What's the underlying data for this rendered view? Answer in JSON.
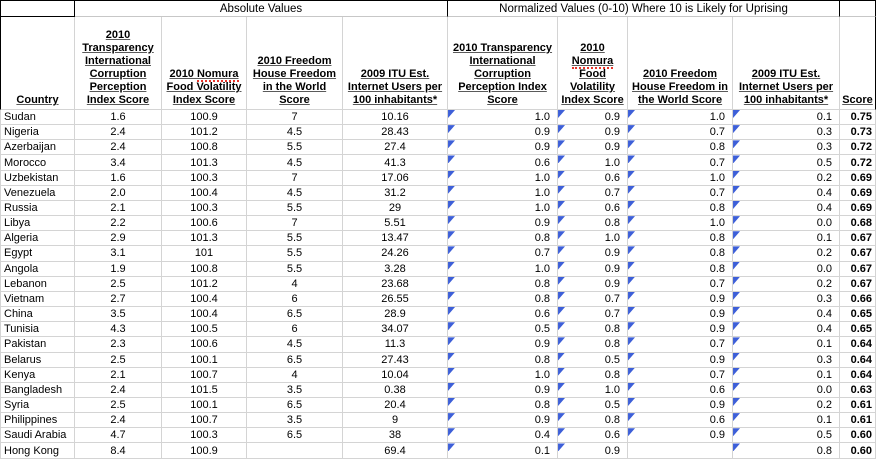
{
  "bands": {
    "absolute_label": "Absolute Values",
    "normalized_label": "Normalized Values (0-10) Where 10 is Likely for Uprising"
  },
  "columns": {
    "country": "Country",
    "abs": [
      "2010 Transparency International Corruption Perception Index Score",
      "2010 Nomura Food Volatility Index Score",
      "2010 Freedom House Freedom in the World Score",
      "2009 ITU Est. Internet Users per 100 inhabitants*"
    ],
    "norm": [
      "2010 Transparency International Corruption Perception Index Score",
      "2010 Nomura Food Volatility Index Score",
      "2010 Freedom House Freedom in the World Score",
      "2009 ITU Est. Internet Users per 100 inhabitants*"
    ],
    "score": "Score"
  },
  "misspelled_word": "Nomura",
  "colors": {
    "formula_marker_blue": "#3d5fd8",
    "gridline": "#d4d4d4",
    "band_border": "#000000"
  },
  "rows": [
    {
      "country": "Sudan",
      "abs": [
        "1.6",
        "100.9",
        "7",
        "10.16"
      ],
      "norm": [
        "1.0",
        "0.9",
        "1.0",
        "0.1"
      ],
      "score": "0.75"
    },
    {
      "country": "Nigeria",
      "abs": [
        "2.4",
        "101.2",
        "4.5",
        "28.43"
      ],
      "norm": [
        "0.9",
        "0.9",
        "0.7",
        "0.3"
      ],
      "score": "0.73"
    },
    {
      "country": "Azerbaijan",
      "abs": [
        "2.4",
        "100.8",
        "5.5",
        "27.4"
      ],
      "norm": [
        "0.9",
        "0.9",
        "0.8",
        "0.3"
      ],
      "score": "0.72"
    },
    {
      "country": "Morocco",
      "abs": [
        "3.4",
        "101.3",
        "4.5",
        "41.3"
      ],
      "norm": [
        "0.6",
        "1.0",
        "0.7",
        "0.5"
      ],
      "score": "0.72"
    },
    {
      "country": "Uzbekistan",
      "abs": [
        "1.6",
        "100.3",
        "7",
        "17.06"
      ],
      "norm": [
        "1.0",
        "0.6",
        "1.0",
        "0.2"
      ],
      "score": "0.69"
    },
    {
      "country": "Venezuela",
      "abs": [
        "2.0",
        "100.4",
        "4.5",
        "31.2"
      ],
      "norm": [
        "1.0",
        "0.7",
        "0.7",
        "0.4"
      ],
      "score": "0.69"
    },
    {
      "country": "Russia",
      "abs": [
        "2.1",
        "100.3",
        "5.5",
        "29"
      ],
      "norm": [
        "1.0",
        "0.6",
        "0.8",
        "0.4"
      ],
      "score": "0.69"
    },
    {
      "country": "Libya",
      "abs": [
        "2.2",
        "100.6",
        "7",
        "5.51"
      ],
      "norm": [
        "0.9",
        "0.8",
        "1.0",
        "0.0"
      ],
      "score": "0.68"
    },
    {
      "country": "Algeria",
      "abs": [
        "2.9",
        "101.3",
        "5.5",
        "13.47"
      ],
      "norm": [
        "0.8",
        "1.0",
        "0.8",
        "0.1"
      ],
      "score": "0.67"
    },
    {
      "country": "Egypt",
      "abs": [
        "3.1",
        "101",
        "5.5",
        "24.26"
      ],
      "norm": [
        "0.7",
        "0.9",
        "0.8",
        "0.2"
      ],
      "score": "0.67"
    },
    {
      "country": "Angola",
      "abs": [
        "1.9",
        "100.8",
        "5.5",
        "3.28"
      ],
      "norm": [
        "1.0",
        "0.9",
        "0.8",
        "0.0"
      ],
      "score": "0.67"
    },
    {
      "country": "Lebanon",
      "abs": [
        "2.5",
        "101.2",
        "4",
        "23.68"
      ],
      "norm": [
        "0.8",
        "0.9",
        "0.7",
        "0.2"
      ],
      "score": "0.67"
    },
    {
      "country": "Vietnam",
      "abs": [
        "2.7",
        "100.4",
        "6",
        "26.55"
      ],
      "norm": [
        "0.8",
        "0.7",
        "0.9",
        "0.3"
      ],
      "score": "0.66"
    },
    {
      "country": "China",
      "abs": [
        "3.5",
        "100.4",
        "6.5",
        "28.9"
      ],
      "norm": [
        "0.6",
        "0.7",
        "0.9",
        "0.4"
      ],
      "score": "0.65"
    },
    {
      "country": "Tunisia",
      "abs": [
        "4.3",
        "100.5",
        "6",
        "34.07"
      ],
      "norm": [
        "0.5",
        "0.8",
        "0.9",
        "0.4"
      ],
      "score": "0.65"
    },
    {
      "country": "Pakistan",
      "abs": [
        "2.3",
        "100.6",
        "4.5",
        "11.3"
      ],
      "norm": [
        "0.9",
        "0.8",
        "0.7",
        "0.1"
      ],
      "score": "0.64"
    },
    {
      "country": "Belarus",
      "abs": [
        "2.5",
        "100.1",
        "6.5",
        "27.43"
      ],
      "norm": [
        "0.8",
        "0.5",
        "0.9",
        "0.3"
      ],
      "score": "0.64"
    },
    {
      "country": "Kenya",
      "abs": [
        "2.1",
        "100.7",
        "4",
        "10.04"
      ],
      "norm": [
        "1.0",
        "0.8",
        "0.7",
        "0.1"
      ],
      "score": "0.64"
    },
    {
      "country": "Bangladesh",
      "abs": [
        "2.4",
        "101.5",
        "3.5",
        "0.38"
      ],
      "norm": [
        "0.9",
        "1.0",
        "0.6",
        "0.0"
      ],
      "score": "0.63"
    },
    {
      "country": "Syria",
      "abs": [
        "2.5",
        "100.1",
        "6.5",
        "20.4"
      ],
      "norm": [
        "0.8",
        "0.5",
        "0.9",
        "0.2"
      ],
      "score": "0.61"
    },
    {
      "country": "Philippines",
      "abs": [
        "2.4",
        "100.7",
        "3.5",
        "9"
      ],
      "norm": [
        "0.9",
        "0.8",
        "0.6",
        "0.1"
      ],
      "score": "0.61"
    },
    {
      "country": "Saudi Arabia",
      "abs": [
        "4.7",
        "100.3",
        "6.5",
        "38"
      ],
      "norm": [
        "0.4",
        "0.6",
        "0.9",
        "0.5"
      ],
      "score": "0.60"
    },
    {
      "country": "Hong Kong",
      "abs": [
        "8.4",
        "100.9",
        "",
        "69.4"
      ],
      "norm": [
        "0.1",
        "0.9",
        "",
        "0.8"
      ],
      "score": "0.60"
    }
  ]
}
